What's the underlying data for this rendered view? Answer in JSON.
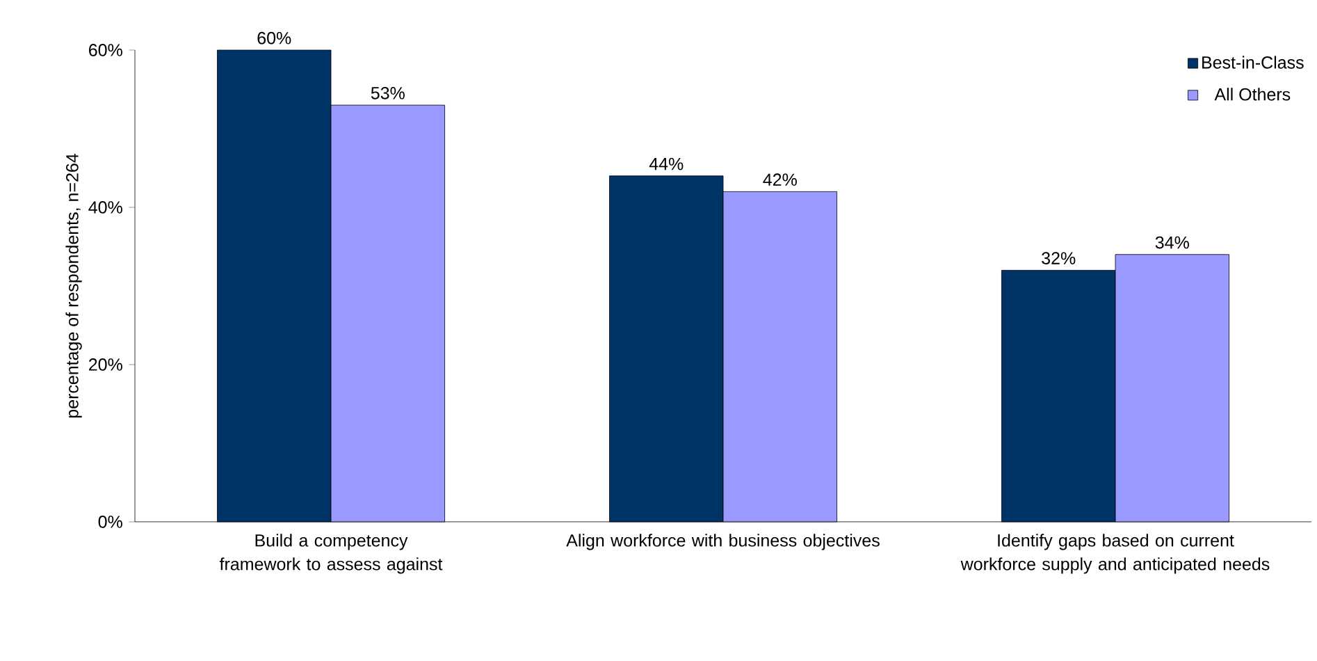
{
  "chart_data": {
    "type": "bar",
    "ylabel": "percentage of respondents, n=264",
    "categories": [
      "Build a competency framework to assess against",
      "Align workforce with business objectives",
      "Identify gaps based on current workforce supply and anticipated needs"
    ],
    "series": [
      {
        "name": "Best-in-Class",
        "color": "#003366",
        "values": [
          60,
          44,
          32
        ],
        "value_labels": [
          "60%",
          "44%",
          "32%"
        ]
      },
      {
        "name": "All Others",
        "color": "#9999ff",
        "values": [
          53,
          42,
          34
        ],
        "value_labels": [
          "53%",
          "42%",
          "34%"
        ]
      }
    ],
    "ylim": [
      0,
      60
    ],
    "yticks": [
      {
        "value": 0,
        "label": "0%"
      },
      {
        "value": 20,
        "label": "20%"
      },
      {
        "value": 40,
        "label": "40%"
      },
      {
        "value": 60,
        "label": "60%"
      }
    ],
    "grid": false,
    "legend": "top right"
  }
}
